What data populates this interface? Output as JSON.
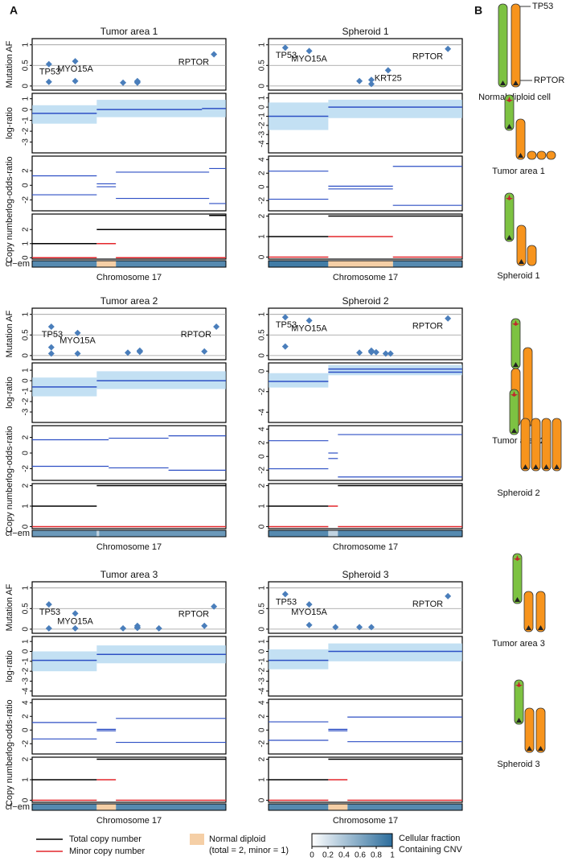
{
  "panel_labels": [
    "A",
    "B"
  ],
  "colors": {
    "point": "#4a7ebb",
    "segment": "#2d4fc4",
    "cloud": "#a9d3ee",
    "total": "#000000",
    "minor": "#e3262b",
    "normal": "#f5cfa6",
    "cf_high": "#2c6d9c",
    "grid": "#999999"
  },
  "chart_data": [
    {
      "type": "genome-tracks",
      "title": "Tumor area 1",
      "track_labels": [
        "Mutation AF",
        "log-ratio",
        "log-odds-ratio",
        "Copy number",
        "cf−em"
      ],
      "xlabel": "Chromosome 17",
      "xlim": [
        0,
        81
      ],
      "af": {
        "x": [
          7,
          7,
          18,
          18,
          38,
          44,
          44,
          44,
          76
        ],
        "values": [
          0.53,
          0.1,
          0.6,
          0.12,
          0.08,
          0.1,
          0.08,
          0.12,
          0.77
        ],
        "point_labels": [
          "TP53",
          null,
          "MYO15A",
          null,
          null,
          null,
          null,
          null,
          "RPTOR"
        ],
        "ylim": [
          -0.1,
          1.15
        ],
        "yticks": [
          0,
          0.5,
          1
        ]
      },
      "logratio": {
        "segments": [
          [
            0,
            27,
            -0.35
          ],
          [
            27,
            71,
            0
          ],
          [
            71,
            81,
            0.1
          ]
        ],
        "cloud": [
          [
            0,
            27,
            -1.3,
            0.4
          ],
          [
            27,
            81,
            -0.7,
            0.9
          ]
        ],
        "ylim": [
          -4,
          1.5
        ],
        "yticks": [
          -3,
          -2,
          -1,
          0,
          1
        ]
      },
      "logodds": {
        "segments": [
          [
            0,
            27,
            1.3
          ],
          [
            0,
            27,
            -1.3
          ],
          [
            27,
            35,
            0.2
          ],
          [
            27,
            35,
            -0.2
          ],
          [
            35,
            74,
            1.8
          ],
          [
            35,
            74,
            -1.8
          ],
          [
            74,
            81,
            2.3
          ],
          [
            74,
            81,
            -2.5
          ]
        ],
        "ylim": [
          -3.5,
          4
        ],
        "yticks": [
          -2,
          0,
          2
        ]
      },
      "copy_number": {
        "total": [
          [
            0,
            27,
            1
          ],
          [
            27,
            81,
            2
          ],
          [
            74,
            81,
            3
          ]
        ],
        "minor": [
          [
            0,
            27,
            0
          ],
          [
            27,
            35,
            1
          ],
          [
            35,
            81,
            0
          ]
        ],
        "ylim": [
          -0.1,
          3.1
        ],
        "yticks": [
          0,
          1,
          2
        ]
      },
      "cf": {
        "segments": [
          [
            0,
            27,
            0.8
          ],
          [
            35,
            81,
            0.8
          ]
        ],
        "normal": [
          [
            27,
            35
          ]
        ]
      }
    },
    {
      "type": "genome-tracks",
      "title": "Spheroid 1",
      "xlabel": "Chromosome 17",
      "xlim": [
        0,
        81
      ],
      "af": {
        "x": [
          7,
          17,
          38,
          43,
          43,
          50,
          75
        ],
        "values": [
          0.93,
          0.85,
          0.12,
          0.15,
          0.05,
          0.38,
          0.9
        ],
        "point_labels": [
          "TP53",
          "MYO15A",
          null,
          null,
          null,
          "KRT25",
          "RPTOR"
        ],
        "ylim": [
          -0.1,
          1.15
        ],
        "yticks": [
          0,
          0.5,
          1
        ]
      },
      "logratio": {
        "segments": [
          [
            0,
            25,
            -1
          ],
          [
            25,
            81,
            0
          ]
        ],
        "cloud": [
          [
            0,
            25,
            -2.5,
            0.5
          ],
          [
            25,
            81,
            -1.2,
            0.8
          ]
        ],
        "ylim": [
          -5,
          1.5
        ],
        "yticks": [
          -4,
          -3,
          -2,
          -1,
          0,
          1
        ]
      },
      "logodds": {
        "segments": [
          [
            0,
            25,
            2.3
          ],
          [
            0,
            25,
            -1.8
          ],
          [
            25,
            52,
            0.1
          ],
          [
            25,
            52,
            -0.3
          ],
          [
            52,
            81,
            3
          ],
          [
            52,
            81,
            -2.7
          ]
        ],
        "ylim": [
          -3.5,
          4.5
        ],
        "yticks": [
          -2,
          0,
          2,
          4
        ]
      },
      "copy_number": {
        "total": [
          [
            0,
            25,
            1
          ],
          [
            25,
            81,
            2
          ]
        ],
        "minor": [
          [
            0,
            25,
            0
          ],
          [
            25,
            52,
            1
          ],
          [
            52,
            81,
            0
          ]
        ],
        "ylim": [
          -0.1,
          2.1
        ],
        "yticks": [
          0,
          1,
          2
        ]
      },
      "cf": {
        "segments": [
          [
            0,
            25,
            0.9
          ],
          [
            52,
            81,
            0.8
          ]
        ],
        "normal": [
          [
            25,
            52
          ]
        ]
      }
    },
    {
      "type": "genome-tracks",
      "title": "Tumor area 2",
      "track_labels": [
        "Mutation AF",
        "log-ratio",
        "log-odds-ratio",
        "Copy number",
        "cf−em"
      ],
      "xlabel": "Chromosome 17",
      "xlim": [
        0,
        81
      ],
      "af": {
        "x": [
          8,
          8,
          8,
          19,
          19,
          40,
          45,
          45,
          45,
          72,
          77
        ],
        "values": [
          0.7,
          0.2,
          0.05,
          0.55,
          0.05,
          0.07,
          0.1,
          0.09,
          0.12,
          0.1,
          0.7
        ],
        "point_labels": [
          "TP53",
          null,
          null,
          "MYO15A",
          null,
          null,
          null,
          null,
          null,
          null,
          "RPTOR"
        ],
        "ylim": [
          -0.1,
          1.15
        ],
        "yticks": [
          0,
          0.5,
          1
        ]
      },
      "logratio": {
        "segments": [
          [
            0,
            27,
            -0.6
          ],
          [
            27,
            81,
            0
          ]
        ],
        "cloud": [
          [
            0,
            27,
            -1.5,
            0.3
          ],
          [
            27,
            81,
            -0.8,
            0.9
          ]
        ],
        "ylim": [
          -4,
          1.7
        ],
        "yticks": [
          -3,
          -2,
          -1,
          0,
          1
        ]
      },
      "logodds": {
        "segments": [
          [
            0,
            32,
            1.7
          ],
          [
            0,
            32,
            -1.7
          ],
          [
            32,
            57,
            1.9
          ],
          [
            32,
            57,
            -1.9
          ],
          [
            57,
            81,
            2.2
          ],
          [
            57,
            81,
            -2.2
          ]
        ],
        "ylim": [
          -3.5,
          3.5
        ],
        "yticks": [
          -2,
          0,
          2
        ]
      },
      "copy_number": {
        "total": [
          [
            0,
            27,
            1
          ],
          [
            27,
            81,
            2
          ]
        ],
        "minor": [
          [
            0,
            81,
            0
          ]
        ],
        "ylim": [
          -0.1,
          2.1
        ],
        "yticks": [
          0,
          1,
          2
        ]
      },
      "cf": {
        "segments": [
          [
            0,
            27,
            0.7
          ],
          [
            27,
            28,
            0.3
          ],
          [
            28,
            81,
            0.7
          ]
        ],
        "normal": []
      }
    },
    {
      "type": "genome-tracks",
      "title": "Spheroid 2",
      "xlabel": "Chromosome 17",
      "xlim": [
        0,
        81
      ],
      "af": {
        "x": [
          7,
          7,
          17,
          38,
          43,
          43,
          43,
          45,
          49,
          51,
          75
        ],
        "values": [
          0.93,
          0.22,
          0.85,
          0.07,
          0.1,
          0.08,
          0.12,
          0.08,
          0.05,
          0.05,
          0.9
        ],
        "point_labels": [
          "TP53",
          null,
          "MYO15A",
          null,
          null,
          null,
          null,
          null,
          null,
          null,
          "RPTOR"
        ],
        "ylim": [
          -0.1,
          1.15
        ],
        "yticks": [
          0,
          0.5,
          1
        ]
      },
      "logratio": {
        "segments": [
          [
            0,
            25,
            -1
          ],
          [
            25,
            81,
            0.2
          ],
          [
            25,
            81,
            -0.1
          ]
        ],
        "cloud": [
          [
            0,
            25,
            -1.6,
            -0.2
          ],
          [
            25,
            81,
            -0.4,
            0.6
          ]
        ],
        "ylim": [
          -5,
          0.8
        ],
        "yticks": [
          -4,
          -2,
          0
        ]
      },
      "logodds": {
        "segments": [
          [
            0,
            25,
            2.3
          ],
          [
            0,
            25,
            -1.8
          ],
          [
            25,
            29,
            0.5
          ],
          [
            25,
            29,
            -0.3
          ],
          [
            29,
            81,
            3.2
          ],
          [
            29,
            81,
            -3
          ]
        ],
        "ylim": [
          -3.5,
          4.5
        ],
        "yticks": [
          -2,
          0,
          2,
          4
        ]
      },
      "copy_number": {
        "total": [
          [
            0,
            25,
            1
          ],
          [
            29,
            81,
            2
          ]
        ],
        "minor": [
          [
            0,
            25,
            0
          ],
          [
            25,
            29,
            1
          ],
          [
            29,
            81,
            0
          ]
        ],
        "ylim": [
          -0.1,
          2.1
        ],
        "yticks": [
          0,
          1,
          2
        ]
      },
      "cf": {
        "segments": [
          [
            0,
            25,
            0.8
          ],
          [
            25,
            29,
            0.3
          ],
          [
            29,
            81,
            0.8
          ]
        ],
        "normal": []
      }
    },
    {
      "type": "genome-tracks",
      "title": "Tumor area 3",
      "track_labels": [
        "Mutation AF",
        "log-ratio",
        "log-odds-ratio",
        "Copy number",
        "cf−em"
      ],
      "xlabel": "Chromosome 17",
      "xlim": [
        0,
        81
      ],
      "af": {
        "x": [
          7,
          7,
          18,
          18,
          38,
          44,
          44,
          44,
          53,
          72,
          76
        ],
        "values": [
          0.6,
          0.02,
          0.38,
          0.02,
          0.02,
          0.05,
          0.08,
          0.03,
          0.02,
          0.08,
          0.55
        ],
        "point_labels": [
          "TP53",
          null,
          "MYO15A",
          null,
          null,
          null,
          null,
          null,
          null,
          null,
          "RPTOR"
        ],
        "ylim": [
          -0.1,
          1.15
        ],
        "yticks": [
          0,
          0.5,
          1
        ]
      },
      "logratio": {
        "segments": [
          [
            0,
            27,
            -0.9
          ],
          [
            27,
            81,
            -0.3
          ]
        ],
        "cloud": [
          [
            0,
            27,
            -2,
            0
          ],
          [
            27,
            81,
            -1.2,
            0.6
          ]
        ],
        "ylim": [
          -4.5,
          1.5
        ],
        "yticks": [
          -4,
          -3,
          -2,
          -1,
          0,
          1
        ]
      },
      "logodds": {
        "segments": [
          [
            0,
            27,
            1.1
          ],
          [
            0,
            27,
            -1.3
          ],
          [
            27,
            35,
            0.1
          ],
          [
            27,
            35,
            -0.1
          ],
          [
            35,
            81,
            1.7
          ],
          [
            35,
            81,
            -1.8
          ]
        ],
        "ylim": [
          -3.5,
          4.5
        ],
        "yticks": [
          -2,
          0,
          2,
          4
        ]
      },
      "copy_number": {
        "total": [
          [
            0,
            27,
            1
          ],
          [
            27,
            81,
            2
          ]
        ],
        "minor": [
          [
            0,
            27,
            0
          ],
          [
            27,
            35,
            1
          ],
          [
            35,
            81,
            0
          ]
        ],
        "ylim": [
          -0.1,
          2.1
        ],
        "yticks": [
          0,
          1,
          2
        ]
      },
      "cf": {
        "segments": [
          [
            0,
            27,
            0.8
          ],
          [
            35,
            81,
            0.8
          ]
        ],
        "normal": [
          [
            27,
            35
          ]
        ]
      }
    },
    {
      "type": "genome-tracks",
      "title": "Spheroid 3",
      "xlabel": "Chromosome 17",
      "xlim": [
        0,
        81
      ],
      "af": {
        "x": [
          7,
          17,
          17,
          28,
          38,
          43,
          75
        ],
        "values": [
          0.85,
          0.6,
          0.1,
          0.05,
          0.05,
          0.05,
          0.8
        ],
        "point_labels": [
          "TP53",
          "MYO15A",
          null,
          null,
          null,
          null,
          "RPTOR"
        ],
        "ylim": [
          -0.1,
          1.15
        ],
        "yticks": [
          0,
          0.5,
          1
        ]
      },
      "logratio": {
        "segments": [
          [
            0,
            25,
            -0.9
          ],
          [
            25,
            81,
            0
          ]
        ],
        "cloud": [
          [
            0,
            25,
            -1.8,
            0.2
          ],
          [
            25,
            81,
            -1,
            0.8
          ]
        ],
        "ylim": [
          -4.5,
          1.5
        ],
        "yticks": [
          -4,
          -3,
          -2,
          -1,
          0,
          1
        ]
      },
      "logodds": {
        "segments": [
          [
            0,
            25,
            1.2
          ],
          [
            0,
            25,
            -1.5
          ],
          [
            25,
            33,
            0.1
          ],
          [
            25,
            33,
            -0.1
          ],
          [
            33,
            81,
            1.9
          ],
          [
            33,
            81,
            -1.7
          ]
        ],
        "ylim": [
          -3.5,
          4.5
        ],
        "yticks": [
          -2,
          0,
          2,
          4
        ]
      },
      "copy_number": {
        "total": [
          [
            0,
            25,
            1
          ],
          [
            25,
            81,
            2
          ]
        ],
        "minor": [
          [
            0,
            25,
            0
          ],
          [
            25,
            33,
            1
          ],
          [
            33,
            81,
            0
          ]
        ],
        "ylim": [
          -0.1,
          2.1
        ],
        "yticks": [
          0,
          1,
          2
        ]
      },
      "cf": {
        "segments": [
          [
            0,
            25,
            0.8
          ],
          [
            33,
            81,
            0.8
          ]
        ],
        "normal": [
          [
            25,
            33
          ]
        ]
      }
    }
  ],
  "legend": {
    "lines": [
      "Total copy number",
      "Minor copy number"
    ],
    "normal": [
      "Normal diploid",
      "(total = 2, minor = 1)"
    ],
    "colorbar": {
      "ticks": [
        0,
        0.2,
        0.4,
        0.6,
        0.8,
        1
      ],
      "label": [
        "Cellular fraction",
        "Containing CNV"
      ]
    }
  },
  "diagrams": {
    "genes": [
      "TP53",
      "RPTOR"
    ],
    "labels": [
      "Normal diploid cell",
      "Tumor area 1",
      "Spheroid 1",
      "Tumor area 2",
      "Spheroid 2",
      "Tumor area 3",
      "Spheroid 3"
    ]
  }
}
